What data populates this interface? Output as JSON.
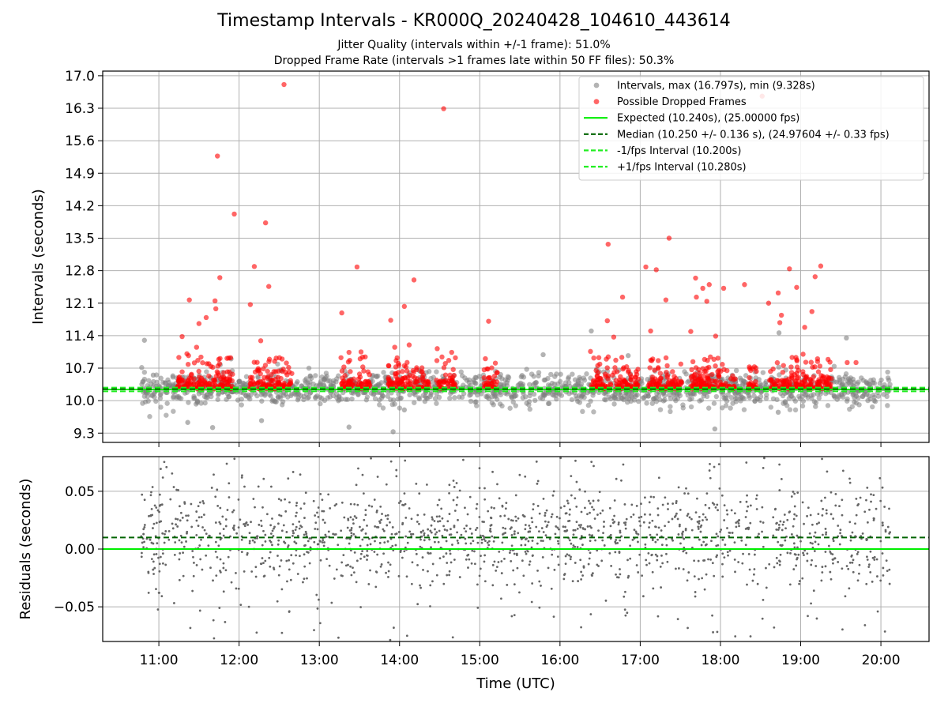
{
  "figure": {
    "title": "Timestamp Intervals - KR000Q_20240428_104610_443614",
    "subtitle_jitter": "Jitter Quality (intervals within +/-1 frame): 51.0%",
    "subtitle_dropped": "Dropped Frame Rate (intervals >1 frames late within 50 FF files): 50.3%"
  },
  "colors": {
    "intervals": "#808080",
    "dropped": "#ff0000",
    "expected": "#00ee00",
    "median": "#006400",
    "fps_interval": "#22ee22",
    "grid": "#b0b0b0",
    "residuals": "#666666"
  },
  "chart_data": [
    {
      "type": "scatter",
      "ylabel": "Intervals (seconds)",
      "ylim": [
        9.1,
        17.1
      ],
      "yticks": [
        9.3,
        10.0,
        10.7,
        11.4,
        12.1,
        12.8,
        13.5,
        14.2,
        14.9,
        15.6,
        16.3,
        17.0
      ],
      "ytick_labels": [
        "9.3",
        "10.0",
        "10.7",
        "11.4",
        "12.1",
        "12.8",
        "13.5",
        "14.2",
        "14.9",
        "15.6",
        "16.3",
        "17.0"
      ],
      "xlim_hours": [
        10.3,
        20.6
      ],
      "xticks_hours": [
        11,
        12,
        13,
        14,
        15,
        16,
        17,
        18,
        19,
        20
      ],
      "grid": true,
      "legend_position": "top-right",
      "legend": [
        {
          "kind": "dot",
          "label": "Intervals, max (16.797s), min (9.328s)",
          "color_key": "intervals"
        },
        {
          "kind": "dot",
          "label": "Possible Dropped Frames",
          "color_key": "dropped"
        },
        {
          "kind": "solid",
          "label": "Expected (10.240s), (25.00000 fps)",
          "color_key": "expected"
        },
        {
          "kind": "dashed",
          "label": "Median (10.250 +/- 0.136 s), (24.97604 +/- 0.33 fps)",
          "color_key": "median"
        },
        {
          "kind": "dashed",
          "label": "-1/fps Interval (10.200s)",
          "color_key": "fps_interval"
        },
        {
          "kind": "dashed",
          "label": "+1/fps Interval (10.280s)",
          "color_key": "fps_interval"
        }
      ],
      "hlines": [
        {
          "name": "expected",
          "y": 10.24,
          "style": "solid",
          "color_key": "expected"
        },
        {
          "name": "median",
          "y": 10.25,
          "style": "dashed",
          "color_key": "median"
        },
        {
          "name": "minus-fps",
          "y": 10.2,
          "style": "dashed",
          "color_key": "fps_interval"
        },
        {
          "name": "plus-fps",
          "y": 10.28,
          "style": "dashed",
          "color_key": "fps_interval"
        }
      ],
      "dropped_outliers_hours": [
        [
          11.29,
          11.38
        ],
        [
          11.35,
          11.01
        ],
        [
          11.37,
          10.97
        ],
        [
          11.38,
          12.17
        ],
        [
          11.47,
          11.15
        ],
        [
          11.5,
          11.66
        ],
        [
          11.59,
          11.79
        ],
        [
          11.7,
          12.15
        ],
        [
          11.71,
          11.98
        ],
        [
          11.73,
          15.27
        ],
        [
          11.76,
          12.65
        ],
        [
          11.94,
          14.02
        ],
        [
          12.14,
          12.07
        ],
        [
          12.19,
          12.89
        ],
        [
          12.33,
          13.83
        ],
        [
          12.37,
          12.46
        ],
        [
          12.56,
          16.81
        ],
        [
          12.27,
          11.29
        ],
        [
          12.59,
          10.81
        ],
        [
          13.28,
          11.89
        ],
        [
          13.47,
          12.88
        ],
        [
          13.52,
          11.05
        ],
        [
          13.37,
          11.04
        ],
        [
          13.89,
          11.73
        ],
        [
          13.94,
          11.15
        ],
        [
          14.06,
          12.03
        ],
        [
          14.12,
          11.2
        ],
        [
          14.18,
          12.6
        ],
        [
          14.55,
          16.29
        ],
        [
          14.47,
          11.12
        ],
        [
          14.65,
          11.04
        ],
        [
          15.11,
          11.71
        ],
        [
          16.38,
          11.06
        ],
        [
          16.59,
          11.72
        ],
        [
          16.6,
          13.37
        ],
        [
          16.67,
          11.37
        ],
        [
          16.78,
          12.23
        ],
        [
          17.07,
          12.88
        ],
        [
          17.13,
          11.5
        ],
        [
          17.2,
          12.82
        ],
        [
          17.32,
          12.17
        ],
        [
          17.36,
          13.5
        ],
        [
          17.63,
          11.49
        ],
        [
          17.69,
          12.64
        ],
        [
          17.7,
          12.23
        ],
        [
          17.78,
          12.42
        ],
        [
          17.83,
          12.14
        ],
        [
          17.86,
          12.5
        ],
        [
          17.94,
          11.39
        ],
        [
          18.04,
          12.42
        ],
        [
          18.3,
          12.5
        ],
        [
          18.52,
          16.56
        ],
        [
          18.6,
          12.1
        ],
        [
          18.72,
          12.32
        ],
        [
          18.76,
          11.84
        ],
        [
          18.86,
          12.84
        ],
        [
          18.95,
          12.44
        ],
        [
          19.05,
          11.58
        ],
        [
          19.14,
          11.92
        ],
        [
          19.18,
          12.67
        ],
        [
          19.25,
          12.9
        ],
        [
          19.58,
          10.82
        ],
        [
          19.69,
          10.82
        ],
        [
          19.03,
          11.0
        ],
        [
          18.74,
          11.68
        ]
      ],
      "interval_outliers_hours": [
        [
          10.82,
          11.3
        ],
        [
          10.93,
          10.55
        ],
        [
          11.36,
          9.53
        ],
        [
          11.67,
          9.42
        ],
        [
          13.37,
          9.43
        ],
        [
          13.92,
          9.33
        ],
        [
          14.06,
          9.8
        ],
        [
          15.79,
          10.99
        ],
        [
          16.39,
          11.5
        ],
        [
          17.93,
          9.39
        ],
        [
          18.73,
          11.46
        ],
        [
          19.57,
          11.35
        ],
        [
          11.9,
          10.9
        ],
        [
          12.28,
          9.57
        ],
        [
          16.85,
          10.97
        ],
        [
          18.72,
          9.75
        ]
      ],
      "dense_bands_hours": [
        [
          11.23,
          11.92
        ],
        [
          12.12,
          12.68
        ],
        [
          13.27,
          13.63
        ],
        [
          13.86,
          14.37
        ],
        [
          14.46,
          14.7
        ],
        [
          15.05,
          15.22
        ],
        [
          16.39,
          16.98
        ],
        [
          17.09,
          17.52
        ],
        [
          17.63,
          18.2
        ],
        [
          18.33,
          18.46
        ],
        [
          18.61,
          19.4
        ]
      ]
    },
    {
      "type": "scatter",
      "ylabel": "Residuals (seconds)",
      "xlabel": "Time (UTC)",
      "ylim": [
        -0.08,
        0.08
      ],
      "yticks": [
        -0.05,
        0.0,
        0.05
      ],
      "ytick_labels": [
        "−0.05",
        "0.00",
        "0.05"
      ],
      "xlim_hours": [
        10.3,
        20.6
      ],
      "xticks_hours": [
        11,
        12,
        13,
        14,
        15,
        16,
        17,
        18,
        19,
        20
      ],
      "xtick_labels": [
        "11:00",
        "12:00",
        "13:00",
        "14:00",
        "15:00",
        "16:00",
        "17:00",
        "18:00",
        "19:00",
        "20:00"
      ],
      "grid": true,
      "hlines": [
        {
          "name": "zero",
          "y": 0.0,
          "style": "solid",
          "color_key": "expected"
        },
        {
          "name": "median-offset",
          "y": 0.01,
          "style": "dashed",
          "color_key": "median"
        }
      ]
    }
  ]
}
